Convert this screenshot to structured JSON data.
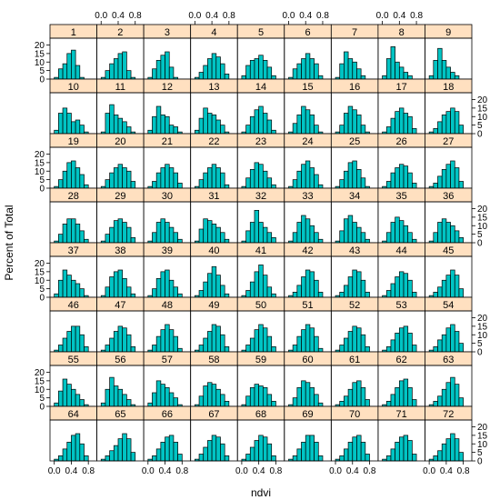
{
  "chart_data": {
    "type": "bar",
    "kind": "trellis histogram",
    "xlabel": "ndvi",
    "ylabel": "Percent of Total",
    "x_ticks": [
      0.0,
      0.4,
      0.8
    ],
    "x_tick_labels": [
      "0.0",
      "0.4",
      "0.8"
    ],
    "y_ticks": [
      0,
      5,
      10,
      15,
      20
    ],
    "y_tick_labels": [
      "0",
      "5",
      "10",
      "15",
      "20"
    ],
    "xlim": [
      -0.1,
      1.0
    ],
    "ylim": [
      0,
      24
    ],
    "bin_start": 0.0,
    "bin_width": 0.1,
    "colors": {
      "bar": "#00c4c4",
      "strip": "#ffe0c0",
      "axis": "#000000"
    },
    "panels": [
      {
        "label": "1",
        "values": [
          1,
          6,
          9,
          15,
          17,
          8,
          1,
          0
        ]
      },
      {
        "label": "2",
        "values": [
          1,
          5,
          9,
          12,
          15,
          16,
          5,
          1
        ]
      },
      {
        "label": "3",
        "values": [
          1,
          6,
          11,
          14,
          16,
          7,
          1,
          0
        ]
      },
      {
        "label": "4",
        "values": [
          1,
          4,
          8,
          12,
          15,
          13,
          9,
          3
        ]
      },
      {
        "label": "5",
        "values": [
          2,
          8,
          11,
          12,
          14,
          11,
          7,
          2
        ]
      },
      {
        "label": "6",
        "values": [
          1,
          6,
          9,
          12,
          15,
          12,
          9,
          2
        ]
      },
      {
        "label": "7",
        "values": [
          1,
          9,
          16,
          12,
          10,
          6,
          2,
          0
        ]
      },
      {
        "label": "8",
        "values": [
          2,
          12,
          19,
          10,
          7,
          4,
          2,
          0
        ]
      },
      {
        "label": "9",
        "values": [
          2,
          11,
          18,
          11,
          7,
          4,
          2,
          0
        ]
      },
      {
        "label": "10",
        "values": [
          2,
          12,
          15,
          12,
          7,
          8,
          5,
          1
        ]
      },
      {
        "label": "11",
        "values": [
          1,
          12,
          17,
          11,
          9,
          7,
          4,
          1
        ]
      },
      {
        "label": "12",
        "values": [
          2,
          10,
          16,
          11,
          10,
          5,
          4,
          1
        ]
      },
      {
        "label": "13",
        "values": [
          2,
          9,
          15,
          12,
          11,
          8,
          5,
          1
        ]
      },
      {
        "label": "14",
        "values": [
          1,
          5,
          10,
          14,
          16,
          12,
          8,
          2
        ]
      },
      {
        "label": "15",
        "values": [
          1,
          6,
          11,
          16,
          14,
          11,
          5,
          1
        ]
      },
      {
        "label": "16",
        "values": [
          1,
          5,
          12,
          16,
          14,
          11,
          5,
          1
        ]
      },
      {
        "label": "17",
        "values": [
          1,
          4,
          9,
          13,
          15,
          12,
          10,
          3
        ]
      },
      {
        "label": "18",
        "values": [
          1,
          3,
          7,
          11,
          13,
          15,
          13,
          5
        ]
      },
      {
        "label": "19",
        "values": [
          1,
          5,
          10,
          15,
          16,
          12,
          8,
          2
        ]
      },
      {
        "label": "20",
        "values": [
          1,
          5,
          9,
          12,
          14,
          12,
          10,
          4
        ]
      },
      {
        "label": "21",
        "values": [
          1,
          4,
          9,
          12,
          14,
          12,
          9,
          3
        ]
      },
      {
        "label": "22",
        "values": [
          1,
          5,
          9,
          12,
          14,
          12,
          9,
          2
        ]
      },
      {
        "label": "23",
        "values": [
          1,
          6,
          11,
          15,
          14,
          10,
          6,
          2
        ]
      },
      {
        "label": "24",
        "values": [
          1,
          5,
          10,
          14,
          16,
          12,
          8,
          2
        ]
      },
      {
        "label": "25",
        "values": [
          1,
          5,
          10,
          15,
          16,
          11,
          6,
          1
        ]
      },
      {
        "label": "26",
        "values": [
          1,
          4,
          9,
          12,
          14,
          13,
          9,
          3
        ]
      },
      {
        "label": "27",
        "values": [
          1,
          3,
          7,
          11,
          14,
          16,
          12,
          4
        ]
      },
      {
        "label": "28",
        "values": [
          1,
          5,
          11,
          14,
          14,
          11,
          7,
          2
        ]
      },
      {
        "label": "29",
        "values": [
          1,
          5,
          9,
          13,
          14,
          12,
          9,
          3
        ]
      },
      {
        "label": "30",
        "values": [
          1,
          6,
          12,
          14,
          12,
          9,
          6,
          2
        ]
      },
      {
        "label": "31",
        "values": [
          1,
          8,
          14,
          13,
          11,
          9,
          6,
          2
        ]
      },
      {
        "label": "32",
        "values": [
          1,
          7,
          12,
          19,
          12,
          9,
          6,
          3
        ]
      },
      {
        "label": "33",
        "values": [
          1,
          6,
          12,
          16,
          14,
          10,
          6,
          2
        ]
      },
      {
        "label": "34",
        "values": [
          1,
          7,
          14,
          16,
          12,
          9,
          6,
          2
        ]
      },
      {
        "label": "35",
        "values": [
          1,
          6,
          12,
          15,
          13,
          10,
          6,
          2
        ]
      },
      {
        "label": "36",
        "values": [
          1,
          6,
          12,
          14,
          12,
          10,
          7,
          3
        ]
      },
      {
        "label": "37",
        "values": [
          2,
          10,
          16,
          13,
          10,
          8,
          5,
          1
        ]
      },
      {
        "label": "38",
        "values": [
          1,
          6,
          12,
          15,
          16,
          11,
          6,
          2
        ]
      },
      {
        "label": "39",
        "values": [
          1,
          5,
          11,
          15,
          16,
          10,
          6,
          2
        ]
      },
      {
        "label": "40",
        "values": [
          1,
          4,
          9,
          14,
          18,
          13,
          7,
          2
        ]
      },
      {
        "label": "41",
        "values": [
          1,
          4,
          9,
          15,
          19,
          13,
          6,
          2
        ]
      },
      {
        "label": "42",
        "values": [
          1,
          3,
          7,
          12,
          16,
          15,
          10,
          3
        ]
      },
      {
        "label": "43",
        "values": [
          1,
          3,
          7,
          12,
          16,
          15,
          10,
          3
        ]
      },
      {
        "label": "44",
        "values": [
          1,
          4,
          8,
          12,
          15,
          14,
          10,
          3
        ]
      },
      {
        "label": "45",
        "values": [
          1,
          3,
          6,
          10,
          13,
          16,
          13,
          5
        ]
      },
      {
        "label": "46",
        "values": [
          1,
          4,
          8,
          12,
          15,
          15,
          10,
          3
        ]
      },
      {
        "label": "47",
        "values": [
          1,
          4,
          8,
          12,
          15,
          14,
          10,
          3
        ]
      },
      {
        "label": "48",
        "values": [
          1,
          4,
          9,
          13,
          16,
          13,
          9,
          2
        ]
      },
      {
        "label": "49",
        "values": [
          1,
          4,
          8,
          12,
          16,
          15,
          10,
          3
        ]
      },
      {
        "label": "50",
        "values": [
          1,
          4,
          8,
          13,
          16,
          14,
          9,
          3
        ]
      },
      {
        "label": "51",
        "values": [
          1,
          4,
          9,
          13,
          16,
          14,
          9,
          2
        ]
      },
      {
        "label": "52",
        "values": [
          1,
          4,
          8,
          12,
          15,
          14,
          10,
          3
        ]
      },
      {
        "label": "53",
        "values": [
          1,
          3,
          7,
          11,
          14,
          15,
          11,
          4
        ]
      },
      {
        "label": "54",
        "values": [
          1,
          3,
          7,
          10,
          14,
          16,
          12,
          5
        ]
      },
      {
        "label": "55",
        "values": [
          2,
          9,
          16,
          13,
          10,
          7,
          4,
          1
        ]
      },
      {
        "label": "56",
        "values": [
          2,
          10,
          17,
          12,
          10,
          7,
          4,
          1
        ]
      },
      {
        "label": "57",
        "values": [
          2,
          8,
          15,
          13,
          11,
          8,
          5,
          1
        ]
      },
      {
        "label": "58",
        "values": [
          1,
          6,
          12,
          14,
          13,
          10,
          7,
          3
        ]
      },
      {
        "label": "59",
        "values": [
          1,
          6,
          11,
          13,
          12,
          11,
          7,
          3
        ]
      },
      {
        "label": "60",
        "values": [
          1,
          5,
          11,
          15,
          14,
          11,
          7,
          2
        ]
      },
      {
        "label": "61",
        "values": [
          1,
          3,
          6,
          10,
          14,
          15,
          11,
          4
        ]
      },
      {
        "label": "62",
        "values": [
          1,
          3,
          7,
          11,
          15,
          16,
          11,
          4
        ]
      },
      {
        "label": "63",
        "values": [
          1,
          3,
          6,
          10,
          14,
          17,
          13,
          5
        ]
      },
      {
        "label": "64",
        "values": [
          1,
          3,
          7,
          11,
          15,
          16,
          10,
          3
        ]
      },
      {
        "label": "65",
        "values": [
          1,
          3,
          6,
          9,
          13,
          16,
          13,
          5
        ]
      },
      {
        "label": "66",
        "values": [
          1,
          3,
          7,
          11,
          14,
          15,
          11,
          4
        ]
      },
      {
        "label": "67",
        "values": [
          1,
          4,
          8,
          12,
          15,
          14,
          10,
          3
        ]
      },
      {
        "label": "68",
        "values": [
          1,
          4,
          8,
          12,
          15,
          14,
          10,
          3
        ]
      },
      {
        "label": "69",
        "values": [
          1,
          3,
          7,
          11,
          15,
          15,
          11,
          3
        ]
      },
      {
        "label": "70",
        "values": [
          1,
          3,
          7,
          11,
          14,
          15,
          11,
          4
        ]
      },
      {
        "label": "71",
        "values": [
          1,
          3,
          7,
          11,
          14,
          15,
          12,
          4
        ]
      },
      {
        "label": "72",
        "values": [
          1,
          3,
          6,
          10,
          13,
          16,
          13,
          5
        ]
      }
    ]
  }
}
